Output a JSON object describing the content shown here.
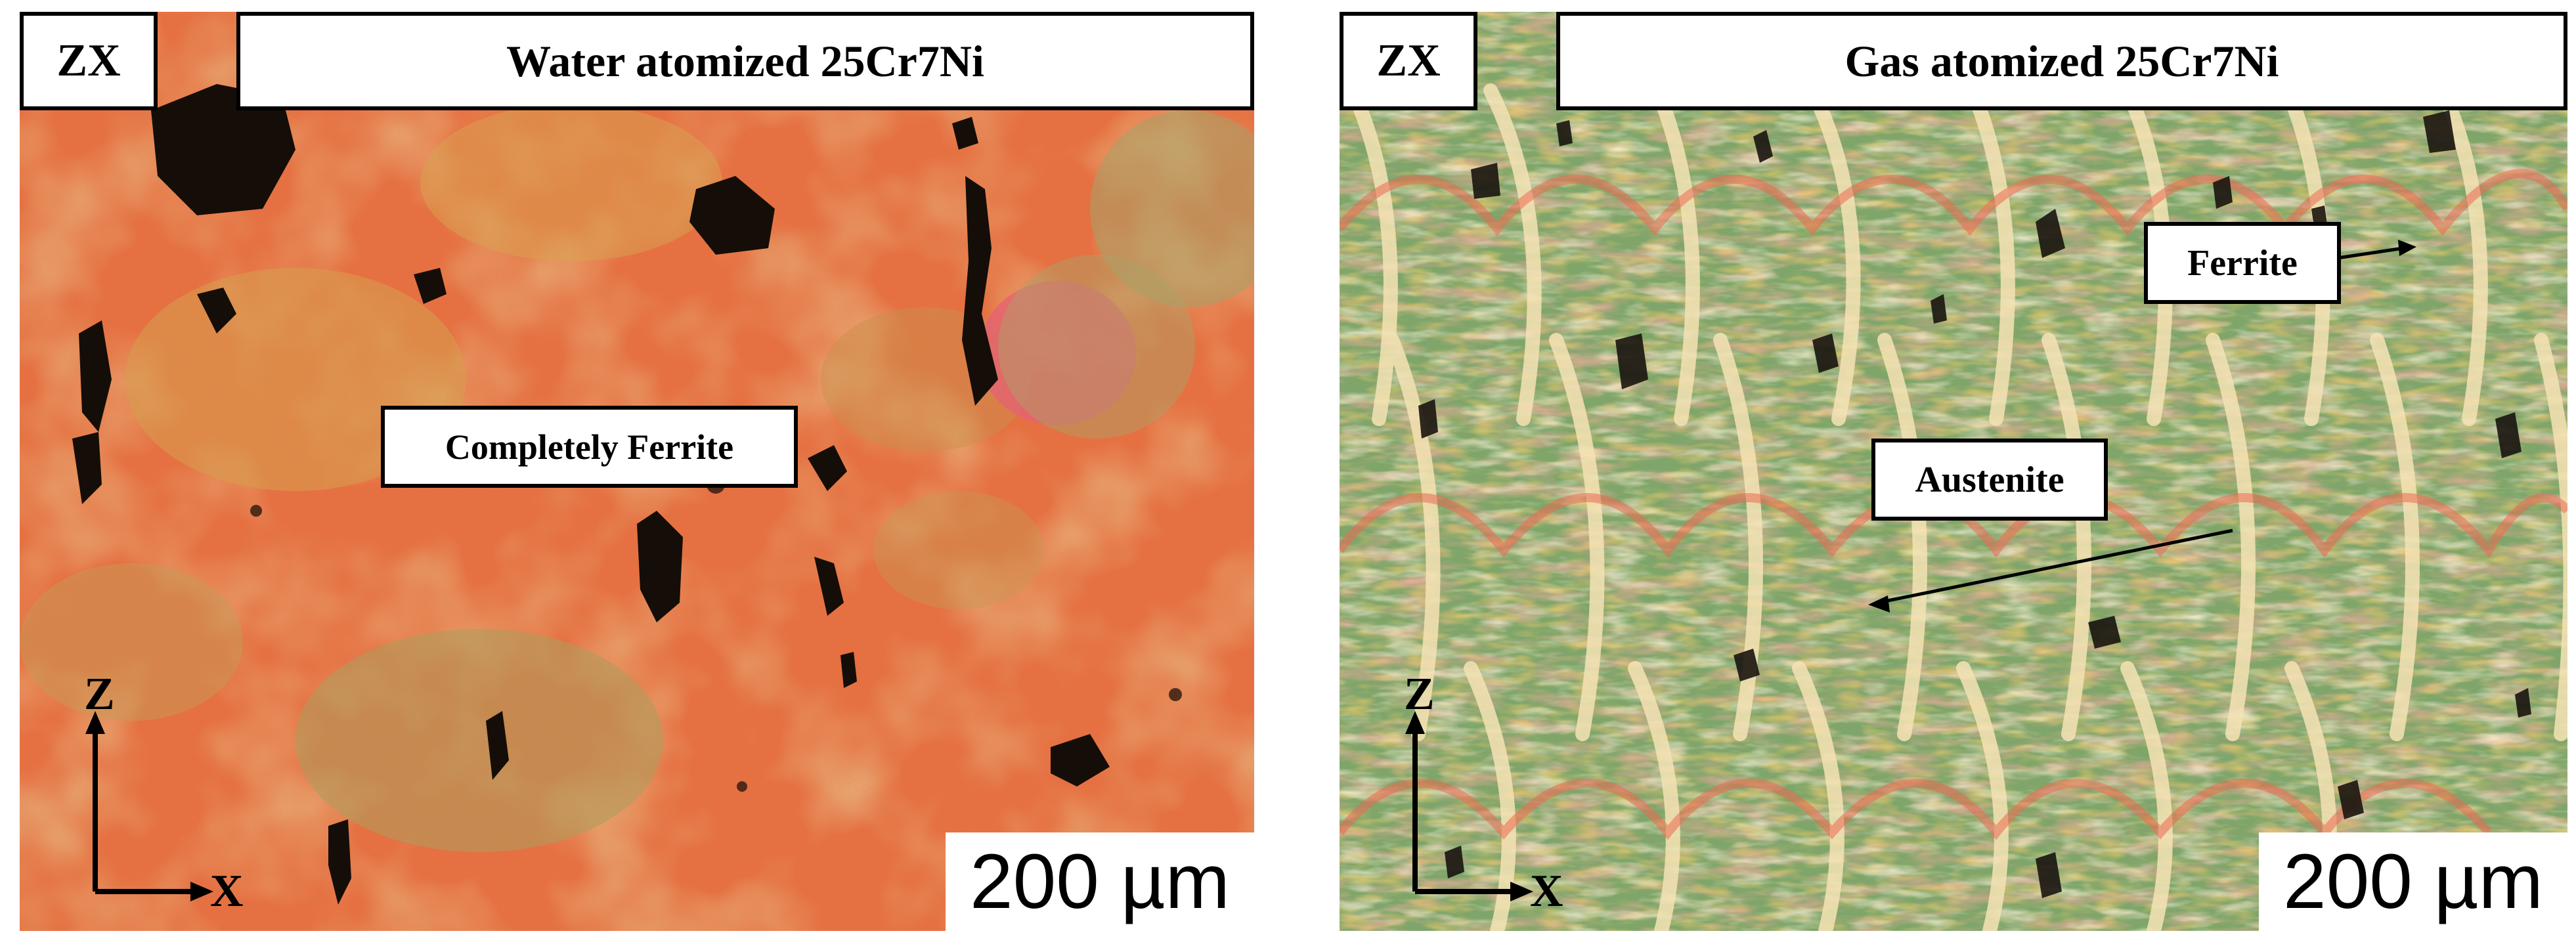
{
  "panels": [
    {
      "orientation_label": "ZX",
      "title": "Water atomized 25Cr7Ni",
      "scale_bar": "200 µm",
      "annotations": [
        "Completely Ferrite"
      ],
      "axis_labels": {
        "vertical": "Z",
        "horizontal": "X"
      },
      "colors": {
        "dominant": "#ea6d3c",
        "secondary": "#d8a44a",
        "pores": "#120c08"
      }
    },
    {
      "orientation_label": "ZX",
      "title": "Gas atomized 25Cr7Ni",
      "scale_bar": "200 µm",
      "annotations": [
        "Ferrite",
        "Austenite"
      ],
      "axis_labels": {
        "vertical": "Z",
        "horizontal": "X"
      },
      "colors": {
        "ferrite": "#7fa56a",
        "austenite": "#f4e0b0",
        "tint": "#ef6b57",
        "pores": "#1a1410"
      }
    }
  ]
}
